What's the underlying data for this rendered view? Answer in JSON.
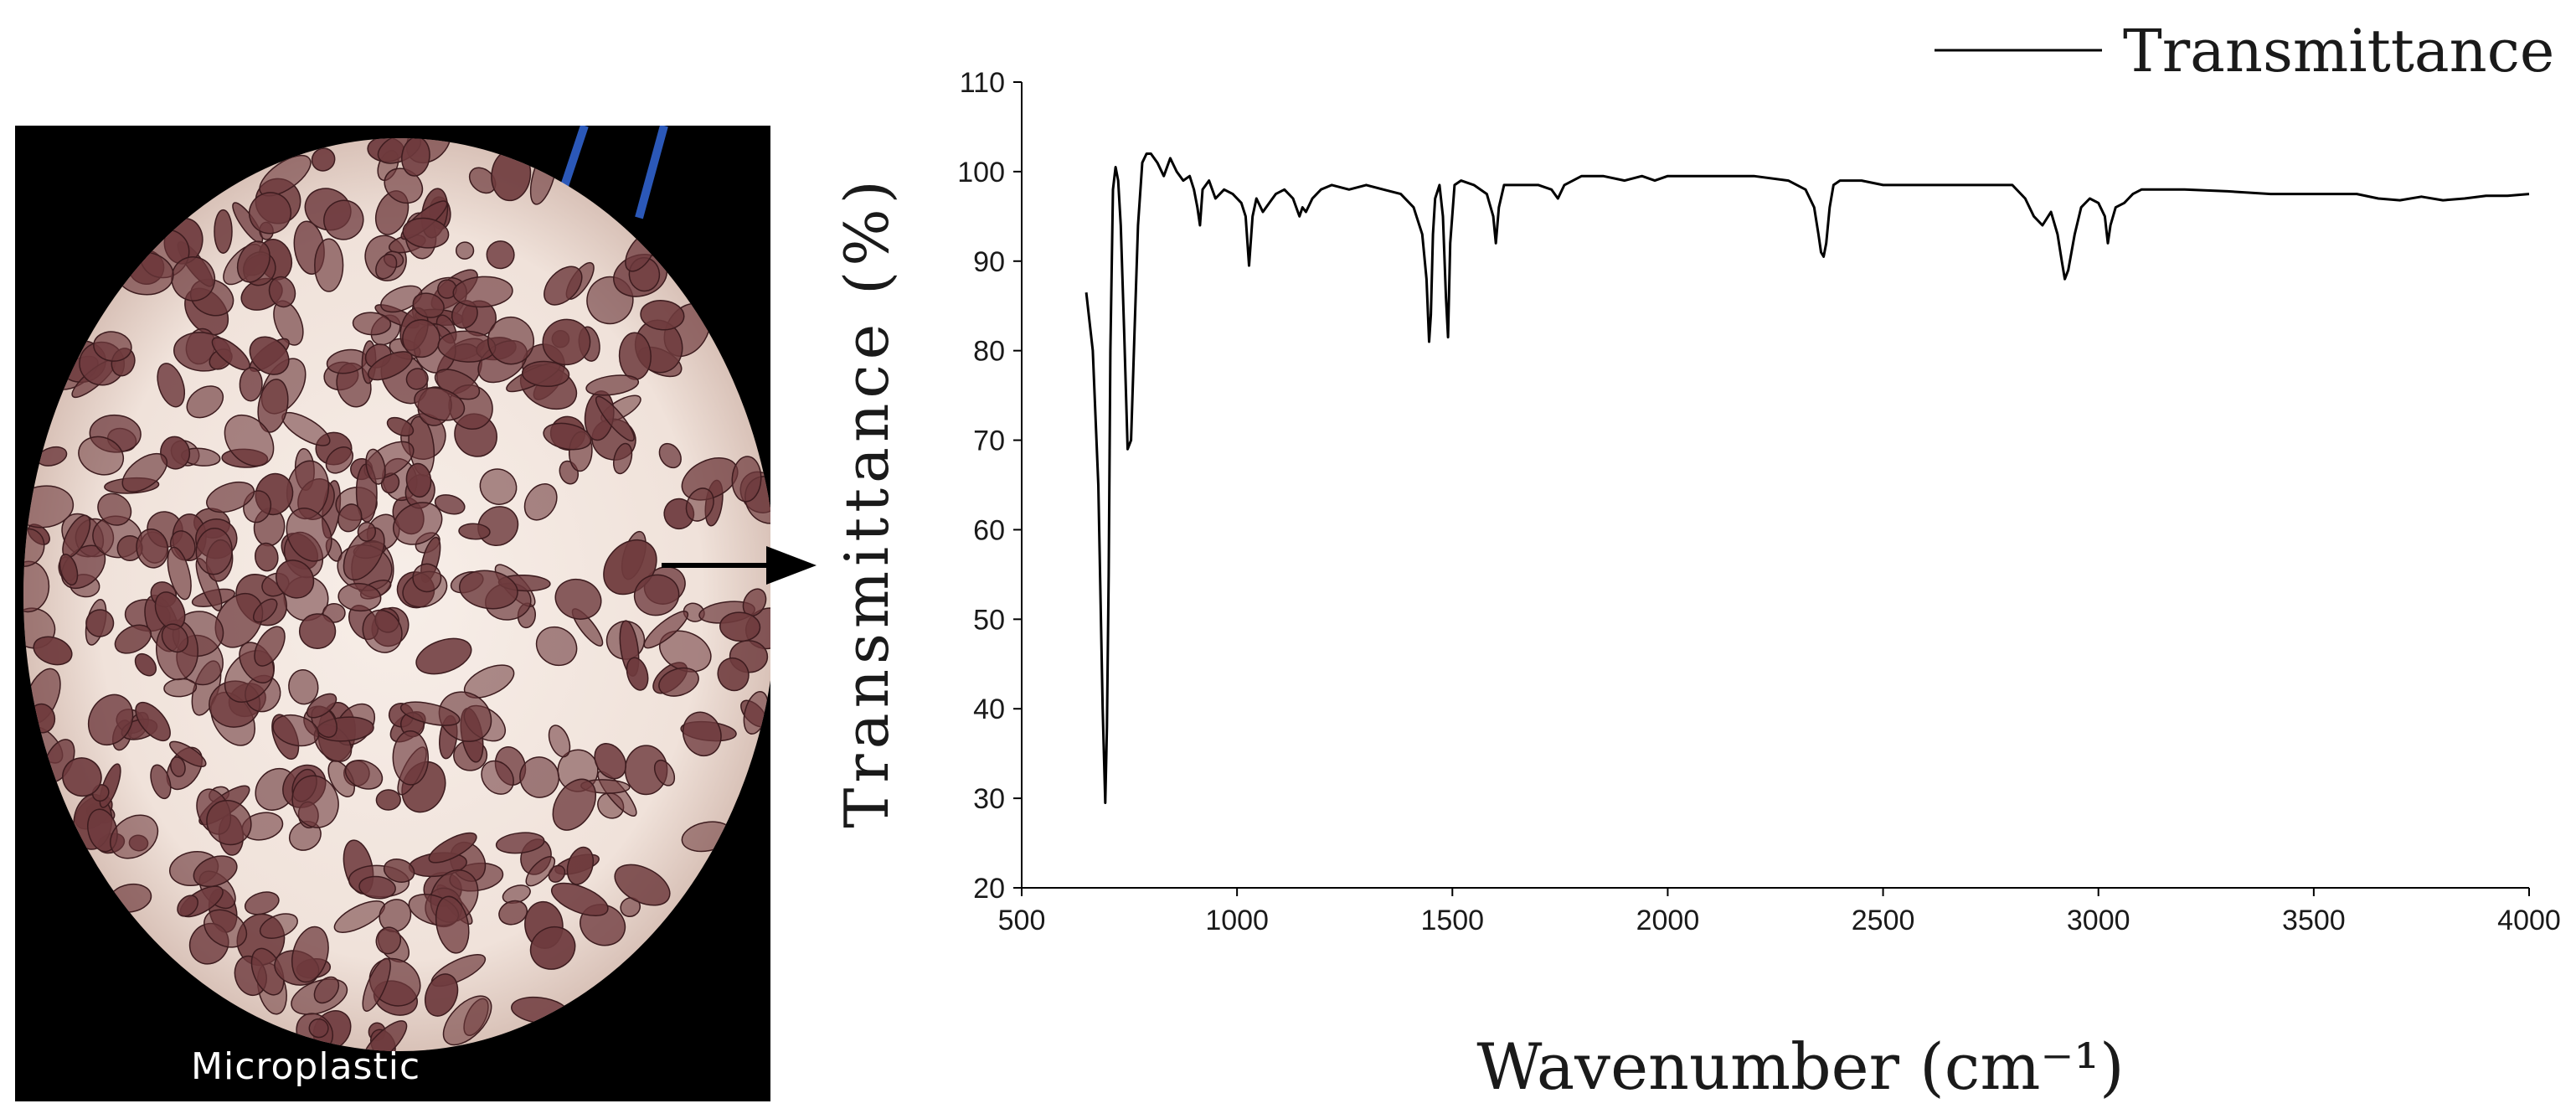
{
  "photo": {
    "label": "Microplastic",
    "background_color": "#f3e8e0",
    "particle_color": "#6e3a3d"
  },
  "chart_data": {
    "type": "line",
    "xlabel": "Wavenumber (cm⁻¹)",
    "ylabel": "Transmittance (%)",
    "xlim": [
      500,
      4000
    ],
    "ylim": [
      20,
      110
    ],
    "xticks": [
      500,
      1000,
      1500,
      2000,
      2500,
      3000,
      3500,
      4000
    ],
    "yticks": [
      20,
      30,
      40,
      50,
      60,
      70,
      80,
      90,
      100,
      110
    ],
    "grid": false,
    "legend_position": "top-right",
    "series": [
      {
        "name": "Transmittance",
        "color": "#000000",
        "x": [
          650,
          665,
          678,
          688,
          694,
          698,
          702,
          706,
          712,
          718,
          724,
          730,
          738,
          746,
          754,
          762,
          770,
          780,
          790,
          800,
          815,
          830,
          845,
          860,
          875,
          890,
          900,
          908,
          914,
          920,
          935,
          950,
          970,
          990,
          1010,
          1020,
          1028,
          1036,
          1045,
          1060,
          1075,
          1090,
          1110,
          1130,
          1145,
          1152,
          1160,
          1175,
          1195,
          1220,
          1260,
          1300,
          1340,
          1380,
          1410,
          1430,
          1440,
          1446,
          1450,
          1455,
          1460,
          1470,
          1478,
          1485,
          1490,
          1495,
          1505,
          1520,
          1550,
          1580,
          1595,
          1601,
          1608,
          1620,
          1650,
          1700,
          1730,
          1745,
          1760,
          1800,
          1850,
          1900,
          1940,
          1970,
          2000,
          2100,
          2200,
          2280,
          2320,
          2340,
          2350,
          2356,
          2362,
          2368,
          2376,
          2385,
          2400,
          2450,
          2500,
          2600,
          2700,
          2800,
          2830,
          2850,
          2870,
          2890,
          2905,
          2915,
          2922,
          2930,
          2945,
          2960,
          2980,
          3000,
          3015,
          3022,
          3028,
          3040,
          3060,
          3080,
          3100,
          3150,
          3200,
          3300,
          3400,
          3500,
          3600,
          3650,
          3700,
          3750,
          3800,
          3850,
          3900,
          3950,
          4000
        ],
        "y": [
          86.5,
          80,
          65,
          40,
          29.5,
          38,
          55,
          80,
          98,
          100.5,
          99,
          94,
          82,
          69,
          70,
          82,
          94,
          101,
          102,
          102,
          101,
          99.5,
          101.5,
          100,
          99,
          99.5,
          98,
          96,
          94,
          98,
          99,
          97,
          98,
          97.5,
          96.5,
          95,
          89.5,
          95,
          97,
          95.5,
          96.5,
          97.5,
          98,
          97,
          95,
          96,
          95.5,
          97,
          98,
          98.5,
          98,
          98.5,
          98,
          97.5,
          96,
          93,
          88,
          81,
          84,
          93,
          97,
          98.5,
          95,
          86,
          81.5,
          92,
          98.5,
          99,
          98.5,
          97.5,
          95,
          92,
          96,
          98.5,
          98.5,
          98.5,
          98,
          97,
          98.5,
          99.5,
          99.5,
          99,
          99.5,
          99,
          99.5,
          99.5,
          99.5,
          99,
          98,
          96,
          93,
          91,
          90.5,
          92,
          96,
          98.5,
          99,
          99,
          98.5,
          98.5,
          98.5,
          98.5,
          97,
          95,
          94,
          95.5,
          93,
          90,
          88,
          89,
          93,
          96,
          97,
          96.5,
          95,
          92,
          94,
          96,
          96.5,
          97.5,
          98,
          98,
          98,
          97.8,
          97.5,
          97.5,
          97.5,
          97,
          96.8,
          97.2,
          96.8,
          97,
          97.3,
          97.3,
          97.5
        ]
      }
    ]
  }
}
